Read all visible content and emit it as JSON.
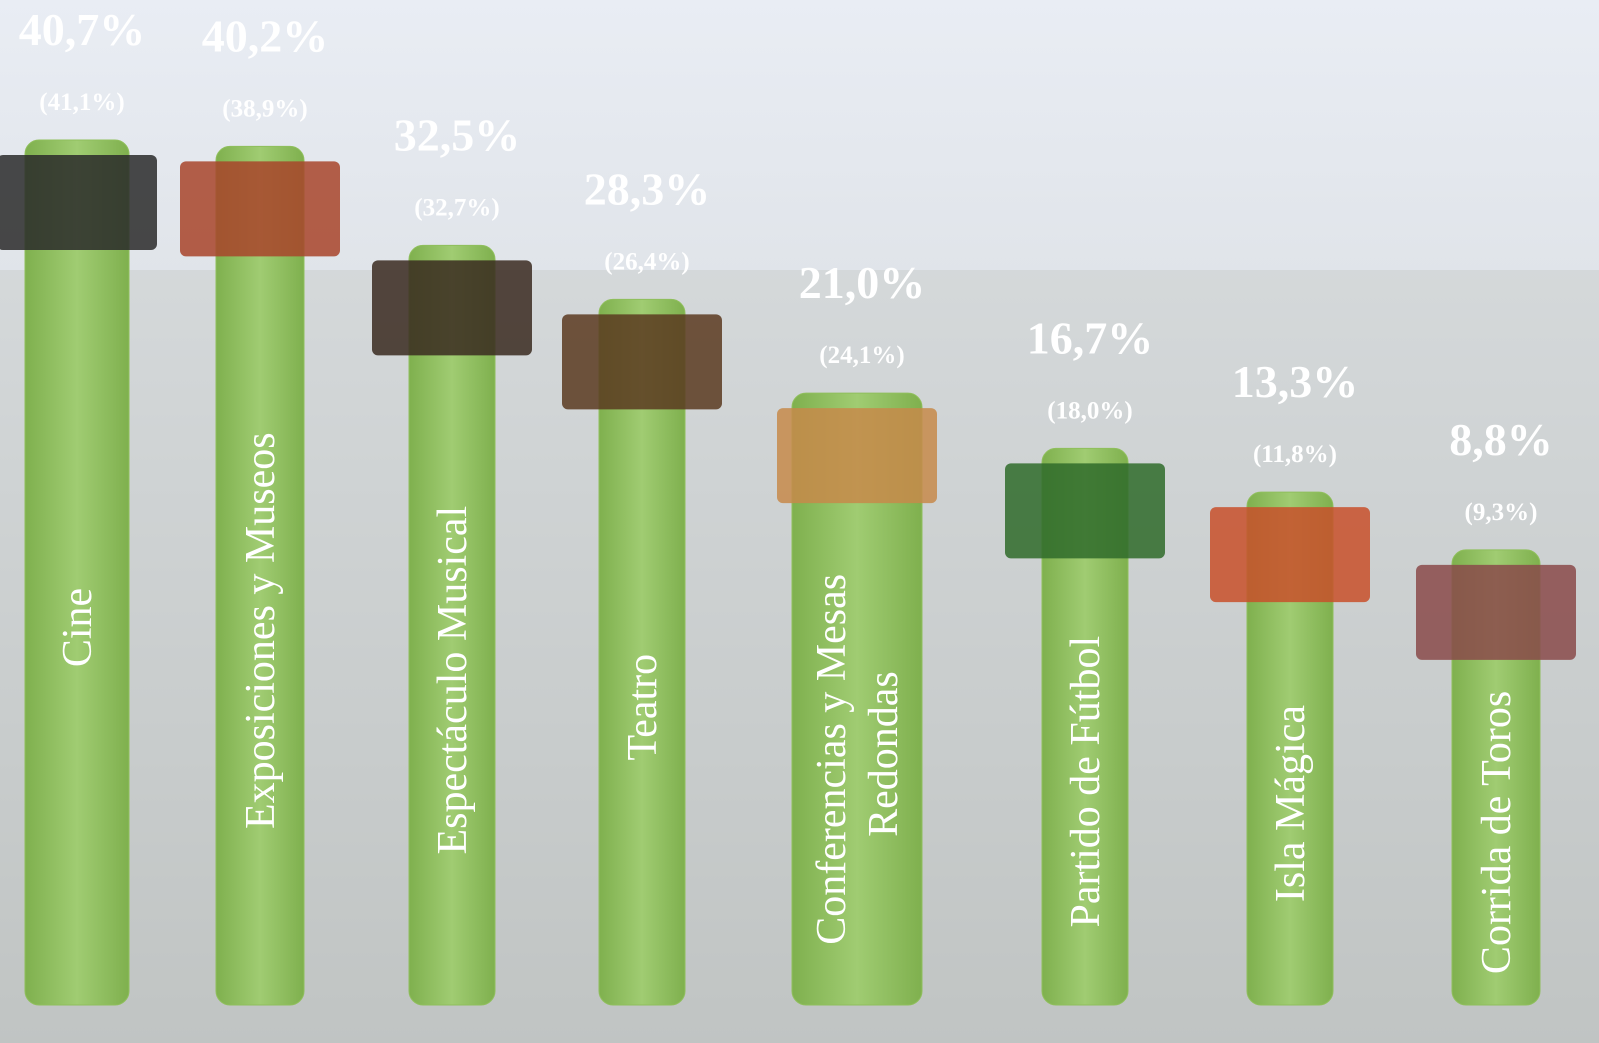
{
  "chart_data": {
    "type": "bar",
    "categories": [
      "Cine",
      "Exposiciones y Museos",
      "Espectáculo Musical",
      "Teatro",
      "Conferencias y Mesas Redondas",
      "Partido de Fútbol",
      "Isla Mágica",
      "Corrida de Toros"
    ],
    "series": [
      {
        "values": [
          40.7,
          40.2,
          32.5,
          28.3,
          21.0,
          16.7,
          13.3,
          8.8
        ],
        "value_labels": [
          "40,7%",
          "40,2%",
          "32,5%",
          "28,3%",
          "21,0%",
          "16,7%",
          "13,3%",
          "8,8%"
        ],
        "color": "#8fbf5c"
      },
      {
        "values": [
          41.1,
          38.9,
          32.7,
          26.4,
          24.1,
          18.0,
          11.8,
          9.3
        ],
        "value_labels": [
          "(41,1%)",
          "(38,9%)",
          "(32,7%)",
          "(26,4%)",
          "(24,1%)",
          "(18,0%)",
          "(11,8%)",
          "(9,3%)"
        ]
      }
    ]
  }
}
